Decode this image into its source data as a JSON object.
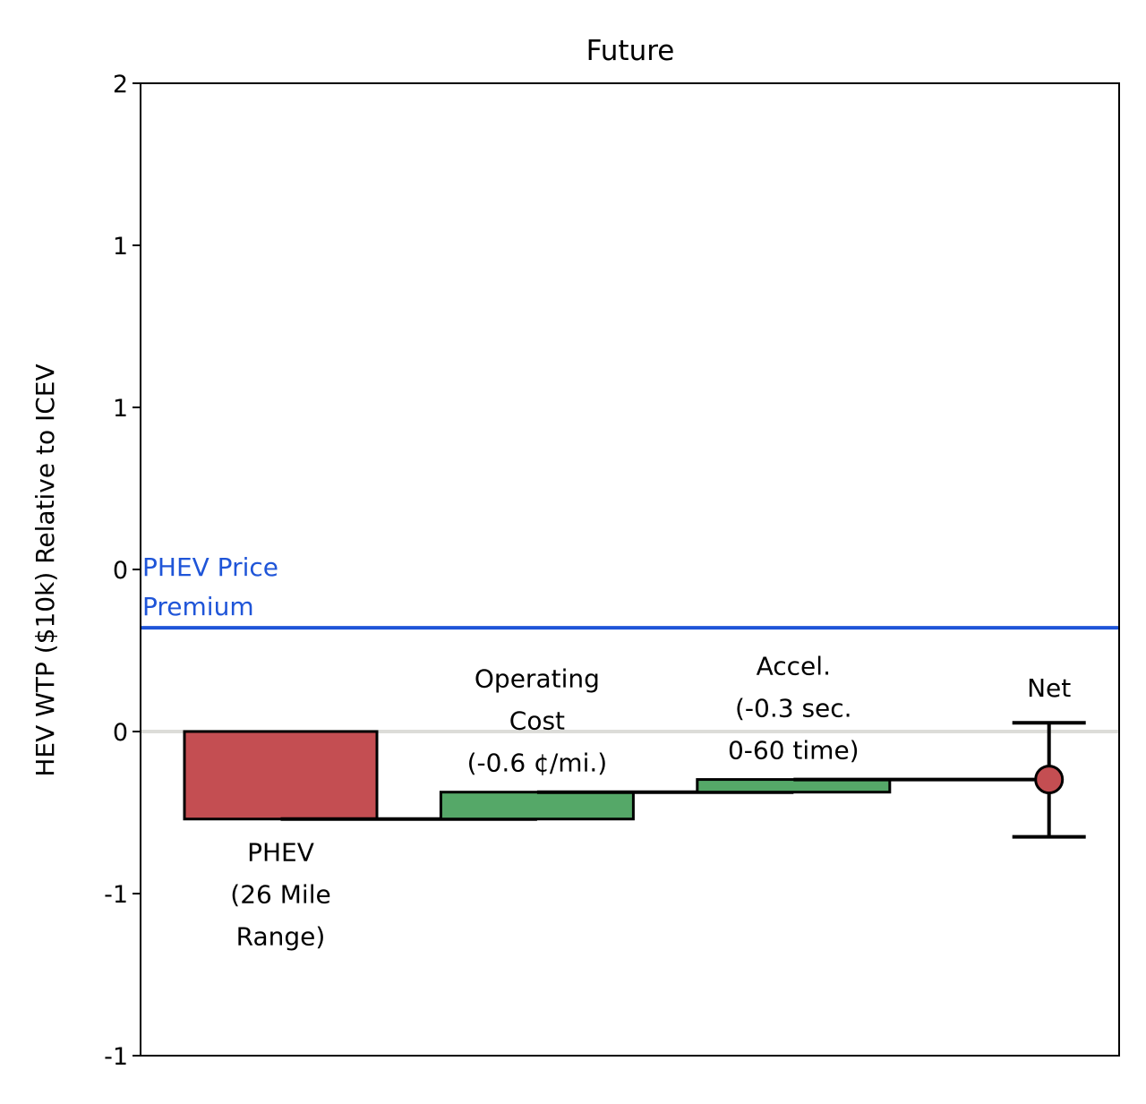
{
  "chart_data": {
    "type": "waterfall",
    "title": "Future",
    "ylabel": "HEV WTP ($10k) Relative to ICEV",
    "xlabel": "",
    "ylim": [
      -1.0,
      2.0
    ],
    "yticks": [
      {
        "value": 2.0,
        "label": "2"
      },
      {
        "value": 1.5,
        "label": "1"
      },
      {
        "value": 1.0,
        "label": "1"
      },
      {
        "value": 0.5,
        "label": "0"
      },
      {
        "value": 0.0,
        "label": "0"
      },
      {
        "value": -0.5,
        "label": "-1"
      },
      {
        "value": -1.0,
        "label": "-1"
      }
    ],
    "grid": false,
    "zero_line": {
      "value": 0.0,
      "color": "#dcdcd8"
    },
    "reference_line": {
      "value": 0.32,
      "label_lines": [
        "PHEV Price",
        "Premium"
      ],
      "color": "#1f55d8"
    },
    "steps": [
      {
        "label_lines": [
          "PHEV",
          "(26 Mile",
          "Range)"
        ],
        "label_position": "below",
        "start": 0.0,
        "end": -0.27,
        "color": "#c44e52"
      },
      {
        "label_lines": [
          "Operating",
          "Cost",
          "(-0.6 ¢/mi.)"
        ],
        "label_position": "above",
        "start": -0.27,
        "end": -0.187,
        "color": "#55a868"
      },
      {
        "label_lines": [
          "Accel.",
          "(-0.3 sec.",
          "0-60 time)"
        ],
        "label_position": "above",
        "start": -0.187,
        "end": -0.148,
        "color": "#55a868"
      }
    ],
    "net": {
      "label": "Net",
      "value": -0.148,
      "error_low": -0.325,
      "error_high": 0.027,
      "color": "#c44e52"
    }
  }
}
